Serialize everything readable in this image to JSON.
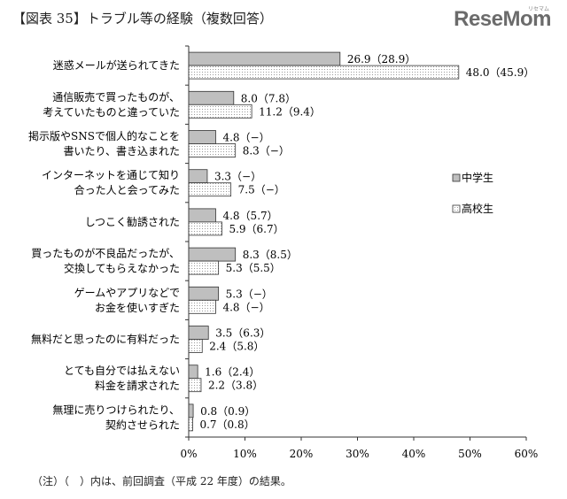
{
  "header": {
    "title": "【図表 35】トラブル等の経験（複数回答）",
    "logo_text": "ReseMom",
    "logo_sub": "リセマム"
  },
  "footer": {
    "note": "（注）（　）内は、前回調査（平成 22 年度）の結果。"
  },
  "colors": {
    "middle_school": "#bfbfbf",
    "high_school": "#ffffff",
    "bar_stroke": "#333333"
  },
  "chart_data": {
    "type": "bar",
    "orientation": "horizontal",
    "xlim": [
      0,
      60
    ],
    "xticks": [
      "0%",
      "10%",
      "20%",
      "30%",
      "40%",
      "50%",
      "60%"
    ],
    "legend_position": "right",
    "categories": [
      [
        "迷惑メールが送られてきた"
      ],
      [
        "通信販売で買ったものが、",
        "考えていたものと違っていた"
      ],
      [
        "掲示版やSNSで個人的なことを",
        "書いたり、書き込まれた"
      ],
      [
        "インターネットを通じて知り",
        "合った人と会ってみた"
      ],
      [
        "しつこく勧誘された"
      ],
      [
        "買ったものが不良品だったが、",
        "交換してもらえなかった"
      ],
      [
        "ゲームやアプリなどで",
        "お金を使いすぎた"
      ],
      [
        "無料だと思ったのに有料だった"
      ],
      [
        "とても自分では払えない",
        "料金を請求された"
      ],
      [
        "無理に売りつけられたり、",
        "契約させられた"
      ]
    ],
    "series": [
      {
        "name": "中学生",
        "values": [
          26.9,
          8.0,
          4.8,
          3.3,
          4.8,
          8.3,
          5.3,
          3.5,
          1.6,
          0.8
        ],
        "labels": [
          "26.9（28.9）",
          "8.0（7.8）",
          "4.8（−）",
          "3.3（−）",
          "4.8（5.7）",
          "8.3（8.5）",
          "5.3（−）",
          "3.5（6.3）",
          "1.6（2.4）",
          "0.8（0.9）"
        ]
      },
      {
        "name": "高校生",
        "values": [
          48.0,
          11.2,
          8.3,
          7.5,
          5.9,
          5.3,
          4.8,
          2.4,
          2.2,
          0.7
        ],
        "labels": [
          "48.0（45.9）",
          "11.2（9.4）",
          "8.3（−）",
          "7.5（−）",
          "5.9（6.7）",
          "5.3（5.5）",
          "4.8（−）",
          "2.4（5.8）",
          "2.2（3.8）",
          "0.7（0.8）"
        ]
      }
    ]
  }
}
